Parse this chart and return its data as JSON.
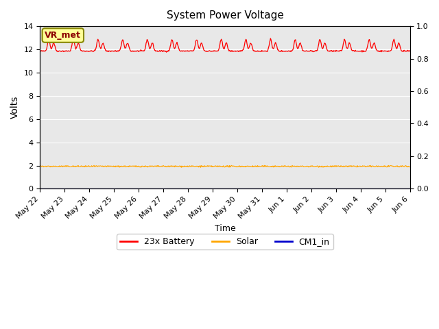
{
  "title": "System Power Voltage",
  "xlabel": "Time",
  "ylabel": "Volts",
  "ylim_left": [
    0,
    14
  ],
  "ylim_right": [
    0.0,
    1.0
  ],
  "yticks_left": [
    0,
    2,
    4,
    6,
    8,
    10,
    12,
    14
  ],
  "yticks_right": [
    0.0,
    0.2,
    0.4,
    0.6,
    0.8,
    1.0
  ],
  "background_color": "#e8e8e8",
  "figure_color": "#ffffff",
  "annotation_text": "VR_met",
  "annotation_bg": "#ffff99",
  "annotation_border": "#888800",
  "line_battery_color": "#ff0000",
  "line_solar_color": "#ffa500",
  "line_cm1_color": "#0000cc",
  "legend_labels": [
    "23x Battery",
    "Solar",
    "CM1_in"
  ],
  "n_days": 16,
  "battery_base": 11.85,
  "solar_base": 1.93,
  "date_labels": [
    "May 22",
    "May 23",
    "May 24",
    "May 25",
    "May 26",
    "May 27",
    "May 28",
    "May 29",
    "May 30",
    "May 31",
    "Jun 1",
    "Jun 2",
    "Jun 3",
    "Jun 4",
    "Jun 5",
    "Jun 6"
  ]
}
